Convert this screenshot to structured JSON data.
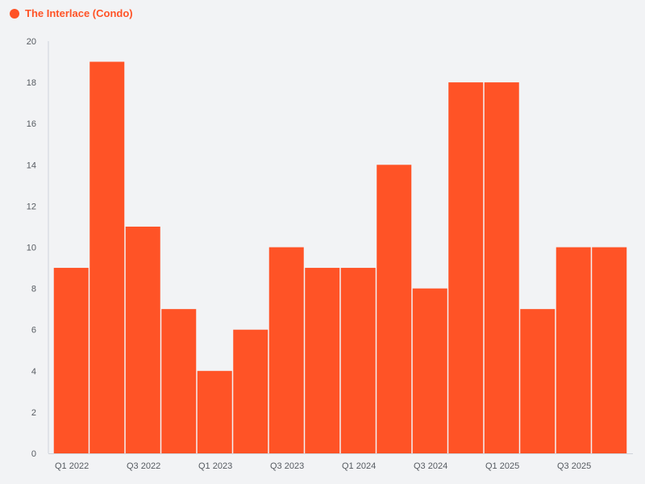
{
  "chart_data": {
    "type": "bar",
    "title": "",
    "xlabel": "",
    "ylabel": "",
    "ylim": [
      0,
      20
    ],
    "yticks": [
      0,
      2,
      4,
      6,
      8,
      10,
      12,
      14,
      16,
      18,
      20
    ],
    "legend_position": "top-left",
    "series": [
      {
        "name": "The Interlace (Condo)",
        "color": "#ff5326",
        "values": [
          9,
          19,
          11,
          7,
          4,
          6,
          10,
          9,
          9,
          14,
          8,
          18,
          18,
          7,
          10,
          10
        ]
      }
    ],
    "categories": [
      "Q1 2022",
      "Q2 2022",
      "Q3 2022",
      "Q4 2022",
      "Q1 2023",
      "Q2 2023",
      "Q3 2023",
      "Q4 2023",
      "Q1 2024",
      "Q2 2024",
      "Q3 2024",
      "Q4 2024",
      "Q1 2025",
      "Q2 2025",
      "Q3 2025",
      "Q4 2025"
    ],
    "category_labels_shown": [
      "Q1 2022",
      "",
      "Q3 2022",
      "",
      "Q1 2023",
      "",
      "Q3 2023",
      "",
      "Q1 2024",
      "",
      "Q3 2024",
      "",
      "Q1 2025",
      "",
      "Q3 2025",
      ""
    ]
  },
  "colors": {
    "accent": "#ff5326",
    "legend_text": "#ff5326",
    "axis_text": "#555a60",
    "axis_line": "#cfd3da"
  }
}
